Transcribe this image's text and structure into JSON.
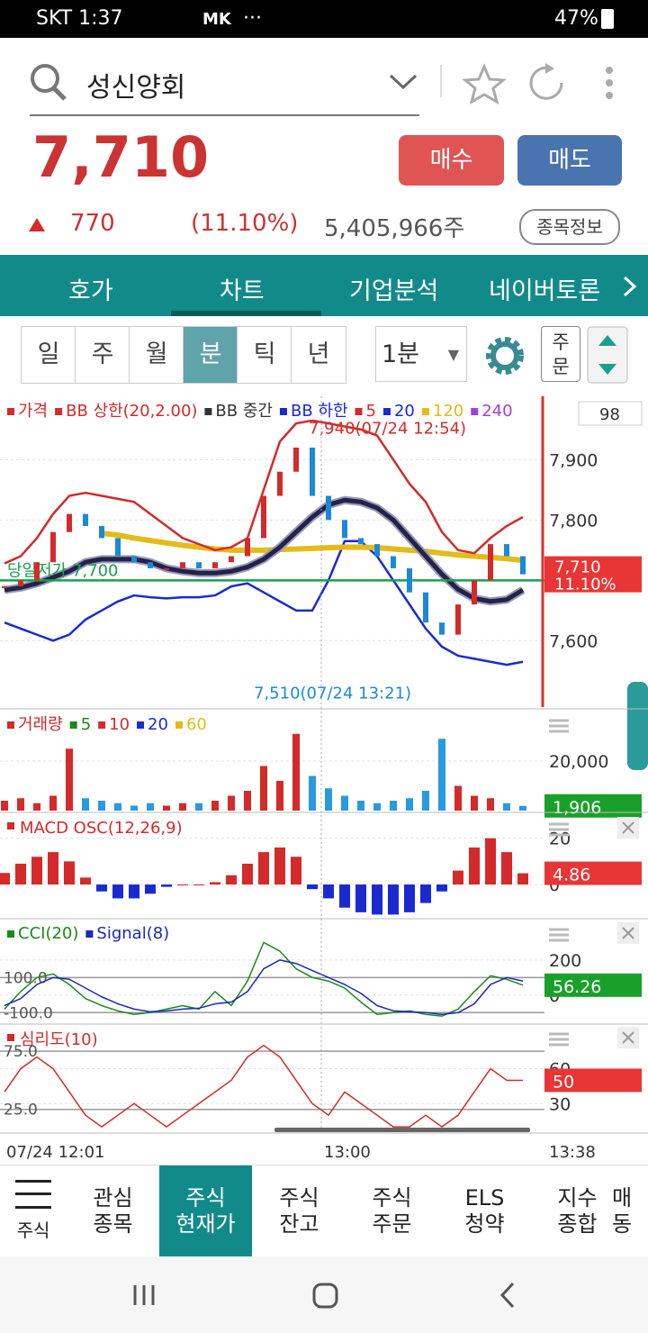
{
  "status_bar": {
    "carrier_time": "SKT 1:37",
    "app": "MK",
    "more": "···",
    "battery": "47%"
  },
  "search": {
    "stock_name": "성신양회"
  },
  "quote": {
    "price": "7,710",
    "buy": "매수",
    "sell": "매도",
    "change": "770",
    "change_rate": "(11.10%)",
    "volume": "5,405,966주",
    "info_button": "종목정보"
  },
  "tabs": [
    "호가",
    "차트",
    "기업분석",
    "네이버토론"
  ],
  "periods": [
    "일",
    "주",
    "월",
    "분",
    "틱",
    "년"
  ],
  "interval": "1분",
  "order_button": "주문",
  "chart": {
    "price": {
      "legend": [
        {
          "name": "가격",
          "color": "#d42a2a"
        },
        {
          "name": "BB 상한(20,2.00)",
          "color": "#d42a2a"
        },
        {
          "name": "BB 중간",
          "color": "#333333"
        },
        {
          "name": "BB 하한",
          "color": "#1a2ad0"
        },
        {
          "name": "5",
          "color": "#d42a2a"
        },
        {
          "name": "20",
          "color": "#1a2ad0"
        },
        {
          "name": "120",
          "color": "#e3bb1a"
        },
        {
          "name": "240",
          "color": "#a040e0"
        }
      ],
      "count": "98",
      "ylim": [
        7490,
        8005
      ],
      "yticks": [
        {
          "value": 7900,
          "label": "7,900"
        },
        {
          "value": 7800,
          "label": "7,800"
        },
        {
          "value": 7600,
          "label": "7,600"
        }
      ],
      "close": [
        7690,
        7700,
        7730,
        7780,
        7810,
        7790,
        7770,
        7740,
        7730,
        7720,
        7720,
        7730,
        7720,
        7730,
        7740,
        7770,
        7840,
        7880,
        7920,
        7840,
        7800,
        7770,
        7760,
        7740,
        7720,
        7680,
        7630,
        7610,
        7660,
        7700,
        7760,
        7740,
        7710
      ],
      "bb_upper": [
        7728,
        7740,
        7770,
        7810,
        7840,
        7845,
        7840,
        7835,
        7830,
        7810,
        7790,
        7770,
        7760,
        7750,
        7755,
        7770,
        7850,
        7930,
        7960,
        7965,
        7960,
        7955,
        7950,
        7940,
        7900,
        7860,
        7830,
        7780,
        7750,
        7745,
        7770,
        7790,
        7805
      ],
      "bb_middle": [
        7684,
        7688,
        7695,
        7705,
        7715,
        7730,
        7735,
        7735,
        7735,
        7730,
        7720,
        7715,
        7712,
        7712,
        7715,
        7722,
        7735,
        7755,
        7780,
        7805,
        7825,
        7833,
        7830,
        7820,
        7800,
        7770,
        7740,
        7710,
        7685,
        7670,
        7665,
        7668,
        7684
      ],
      "bb_lower": [
        7630,
        7620,
        7610,
        7600,
        7610,
        7635,
        7650,
        7665,
        7675,
        7672,
        7670,
        7672,
        7672,
        7675,
        7690,
        7695,
        7680,
        7665,
        7650,
        7650,
        7700,
        7765,
        7765,
        7740,
        7700,
        7660,
        7620,
        7590,
        7575,
        7570,
        7565,
        7560,
        7565
      ],
      "ma120": [
        null,
        null,
        null,
        null,
        null,
        null,
        7778,
        7775,
        7770,
        7766,
        7762,
        7758,
        7755,
        7752,
        7750,
        7750,
        7750,
        7751,
        7752,
        7753,
        7754,
        7755,
        7755,
        7754,
        7752,
        7750,
        7748,
        7745,
        7742,
        7740,
        7738,
        7736,
        7733
      ],
      "high": {
        "value": 7940,
        "label": "7,940(07/24 12:54)"
      },
      "low": {
        "value": 7510,
        "label": "7,510(07/24 13:21)"
      },
      "day_low": {
        "value": 7700,
        "label": "당일저가 7,700"
      },
      "current": {
        "value": 7710,
        "price": "7,710",
        "rate": "11.10%"
      }
    },
    "volume": {
      "legend": [
        {
          "name": "거래량",
          "color": "#d42a2a"
        },
        {
          "name": "5",
          "color": "#1a8a1a"
        },
        {
          "name": "10",
          "color": "#d42a2a"
        },
        {
          "name": "20",
          "color": "#1a2ad0"
        },
        {
          "name": "60",
          "color": "#e3bb1a"
        }
      ],
      "ylim": [
        0,
        40000
      ],
      "yticks": [
        {
          "value": 20000,
          "label": "20,000"
        }
      ],
      "values": [
        4000,
        5000,
        3000,
        6000,
        25000,
        5000,
        4000,
        3000,
        2000,
        3000,
        2000,
        3000,
        3000,
        4000,
        6000,
        8000,
        18000,
        12000,
        31000,
        14000,
        9000,
        6000,
        4000,
        3000,
        4000,
        5000,
        8000,
        29000,
        10000,
        6000,
        5000,
        3000,
        1906
      ],
      "current": {
        "value": 1906,
        "label": "1,906"
      }
    },
    "macd": {
      "name": "MACD OSC(12,26,9)",
      "color": "#d42a2a",
      "ylim": [
        -14,
        30
      ],
      "yticks": [
        20,
        0
      ],
      "values": [
        5,
        9,
        12,
        14,
        10,
        3,
        -3,
        -6,
        -6,
        -4,
        -1,
        0,
        0,
        1,
        4,
        9,
        14,
        16,
        12,
        -2,
        -6,
        -10,
        -12,
        -13,
        -13,
        -12,
        -8,
        -3,
        6,
        16,
        20,
        14,
        4.86
      ]
    },
    "cci": {
      "legend": [
        {
          "name": "CCI(20)",
          "color": "#1a8a1a"
        },
        {
          "name": "Signal(8)",
          "color": "#1a2ab0"
        }
      ],
      "ylim": [
        -155,
        425
      ],
      "yticks": [
        200,
        0
      ],
      "guides": [
        {
          "value": 100,
          "label": "100.0"
        },
        {
          "value": -100,
          "label": "-100.0"
        }
      ],
      "cci": [
        -80,
        20,
        100,
        120,
        60,
        -20,
        -60,
        -90,
        -110,
        -100,
        -80,
        -60,
        -80,
        20,
        -60,
        80,
        300,
        250,
        150,
        100,
        80,
        40,
        -40,
        -110,
        -100,
        -90,
        -110,
        -120,
        -80,
        20,
        110,
        90,
        56.26
      ],
      "signal": [
        -60,
        -20,
        60,
        100,
        90,
        40,
        -10,
        -50,
        -80,
        -95,
        -90,
        -80,
        -75,
        -50,
        -40,
        20,
        150,
        200,
        180,
        140,
        100,
        60,
        10,
        -60,
        -90,
        -95,
        -100,
        -110,
        -100,
        -50,
        60,
        100,
        80
      ]
    },
    "psych": {
      "name": "심리도(10)",
      "color": "#d42a2a",
      "ylim": [
        7,
        96
      ],
      "yticks": [
        60,
        30
      ],
      "guides": [
        {
          "value": 75,
          "label": "75.0"
        },
        {
          "value": 25,
          "label": "25.0"
        }
      ],
      "values": [
        40,
        60,
        70,
        60,
        40,
        20,
        10,
        20,
        30,
        20,
        10,
        20,
        30,
        40,
        50,
        70,
        80,
        70,
        50,
        30,
        20,
        40,
        30,
        20,
        10,
        10,
        20,
        10,
        20,
        40,
        60,
        50,
        50
      ]
    }
  },
  "time_axis": [
    "07/24 12:01",
    "13:00",
    "13:38"
  ],
  "bottom_nav": [
    [
      "주식"
    ],
    [
      "관심",
      "종목"
    ],
    [
      "주식",
      "현재가"
    ],
    [
      "주식",
      "잔고"
    ],
    [
      "주식",
      "주문"
    ],
    [
      "ELS",
      "청약"
    ],
    [
      "지수",
      "종합"
    ],
    [
      "매",
      "동"
    ]
  ]
}
